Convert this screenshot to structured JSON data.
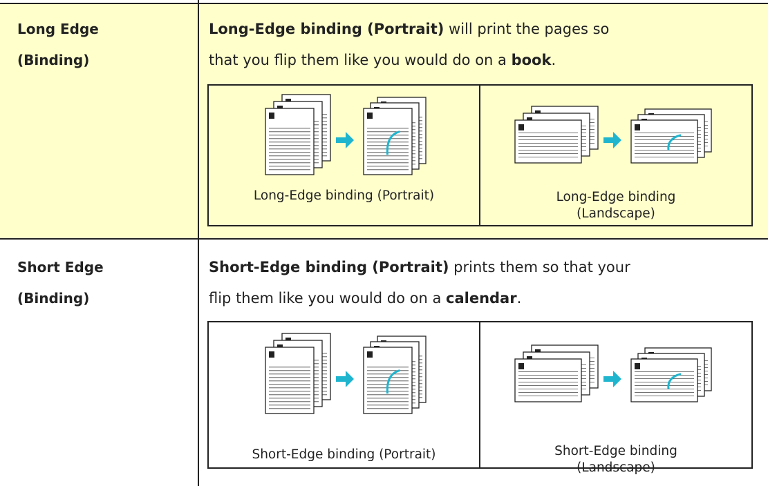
{
  "rows": [
    {
      "label_lines": [
        "Long Edge",
        "(Binding)"
      ],
      "description_lines": [
        [
          {
            "text": "Long-Edge binding (Portrait)",
            "bold": true
          },
          {
            "text": " will print the pages so",
            "bold": false
          }
        ],
        [
          {
            "text": "that you flip them like you would do on a ",
            "bold": false
          },
          {
            "text": "book",
            "bold": true
          },
          {
            "text": ".",
            "bold": false
          }
        ]
      ],
      "examples": [
        {
          "caption": "Long-Edge binding (Portrait)",
          "orientation": "portrait"
        },
        {
          "caption": "Long-Edge binding (Landscape)",
          "orientation": "landscape"
        }
      ]
    },
    {
      "label_lines": [
        "Short Edge",
        "(Binding)"
      ],
      "description_lines": [
        [
          {
            "text": "Short-Edge binding (Portrait)",
            "bold": true
          },
          {
            "text": " prints them so that your",
            "bold": false
          }
        ],
        [
          {
            "text": "flip them like you would do on a ",
            "bold": false
          },
          {
            "text": "calendar",
            "bold": true
          },
          {
            "text": ".",
            "bold": false
          }
        ]
      ],
      "examples": [
        {
          "caption": "Short-Edge binding (Portrait)",
          "orientation": "portrait"
        },
        {
          "caption": "Short-Edge binding (Landscape)",
          "orientation": "landscape"
        }
      ]
    }
  ]
}
